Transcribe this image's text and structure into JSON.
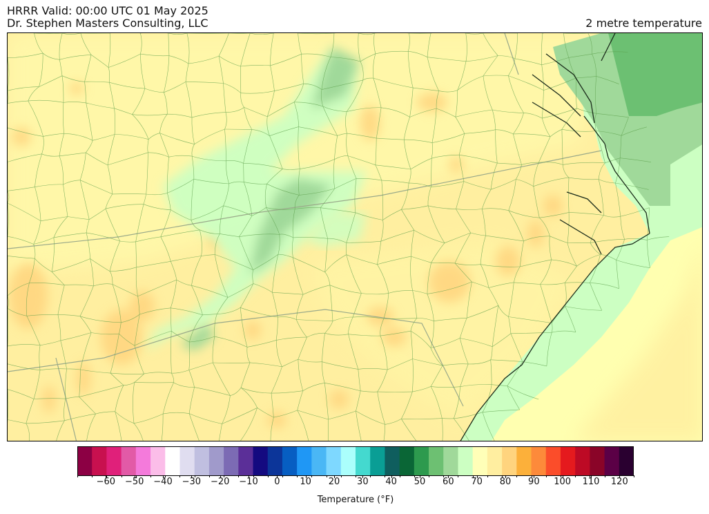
{
  "header": {
    "line1": "HRRR Valid: 00:00 UTC 01 May 2025",
    "line2": "Dr. Stephen Masters Consulting, LLC",
    "right": "2 metre temperature"
  },
  "map": {
    "region": "Mid-Atlantic / Carolinas",
    "field": "2 metre temperature",
    "palette": {
      "ocean_warm": "#ffffb0",
      "ocean_mid": "#fff0a0",
      "coast_cool": "#ccffc2",
      "bay_cool": "#9fd99a",
      "bay_deep": "#6cc072",
      "land_base": "#ffefa0",
      "land_warm": "#ffd47e",
      "land_cool": "#ccffc2",
      "mountain_green": "#9fd99a",
      "county_line": "#5b9e4a",
      "state_line": "#9aa98a",
      "coastline": "#1a2b1a"
    }
  },
  "colorbar": {
    "label": "Temperature (°F)",
    "colors": [
      "#8c0044",
      "#c8104f",
      "#e0207a",
      "#e25aa7",
      "#f47adb",
      "#fbbde9",
      "#ffffff",
      "#e0ddf0",
      "#c0bfe0",
      "#a09acb",
      "#7c6bb4",
      "#5b2f98",
      "#140a80",
      "#0c3599",
      "#075ec2",
      "#1f97f5",
      "#4ab7f5",
      "#7ed8ff",
      "#abfffc",
      "#44d9cf",
      "#0a9e95",
      "#0f5e5e",
      "#0a6636",
      "#2d9a4e",
      "#6dc072",
      "#a0d99a",
      "#ccffc2",
      "#ffffb8",
      "#ffeea0",
      "#ffd47e",
      "#fcb03a",
      "#fd8a3a",
      "#fb4d2a",
      "#e51a1e",
      "#bd0a25",
      "#8a0428",
      "#5b0046",
      "#2a0030"
    ],
    "tick_labels": [
      "−60",
      "−50",
      "−40",
      "−30",
      "−20",
      "−10",
      "0",
      "10",
      "20",
      "30",
      "40",
      "50",
      "60",
      "70",
      "80",
      "90",
      "100",
      "110",
      "120"
    ],
    "range": [
      -70,
      125
    ]
  }
}
